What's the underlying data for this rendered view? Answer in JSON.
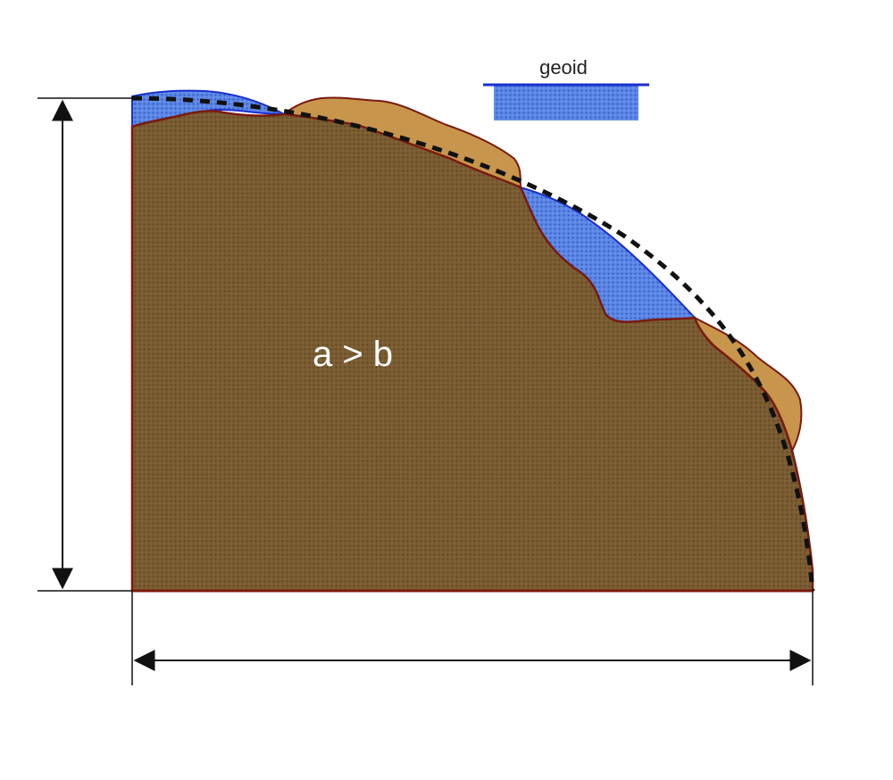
{
  "diagram": {
    "center_label": "a > b",
    "legend": {
      "label": "geoid",
      "water_color": "#5b86e6",
      "line_color": "#1a2fcf"
    },
    "colors": {
      "earth_fill": "#7a5c32",
      "earth_outline": "#7a1a10",
      "land_fill": "#c7954b",
      "water_fill": "#5b86e6",
      "water_edge": "#1a2fcf",
      "ellipsoid_line": "#111111",
      "dimension_line": "#111111"
    }
  }
}
